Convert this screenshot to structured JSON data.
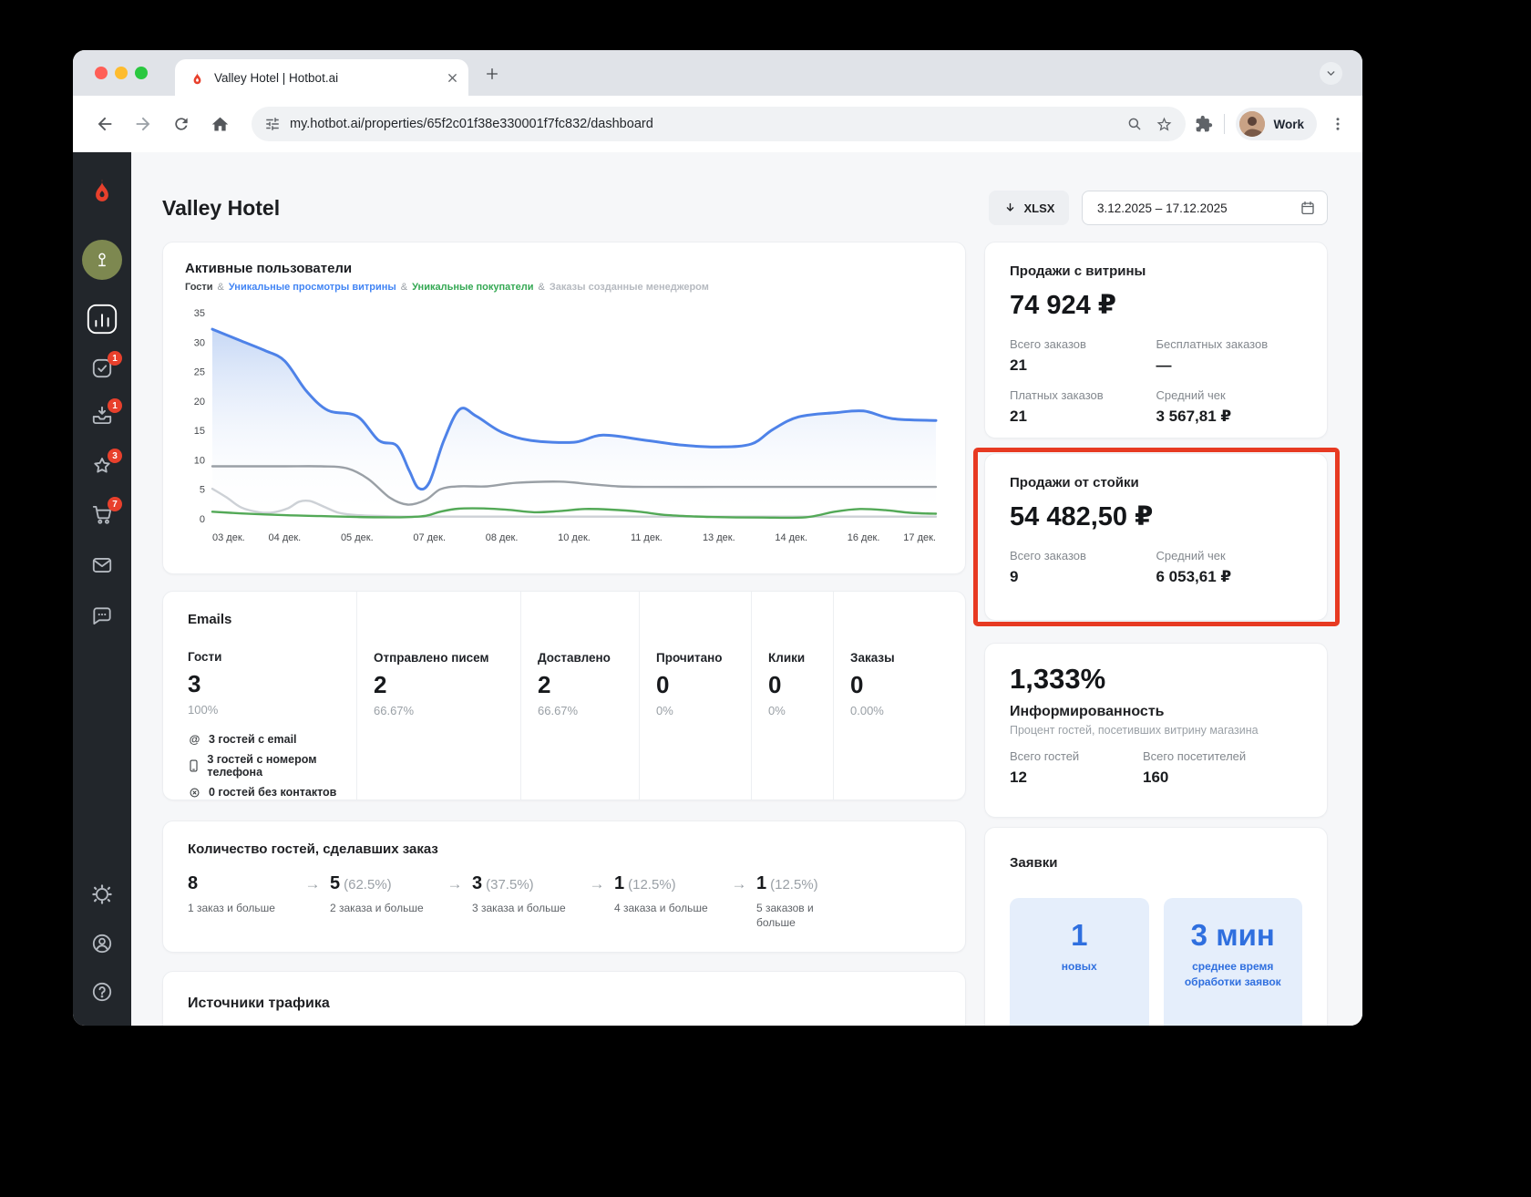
{
  "browser": {
    "tab_title": "Valley Hotel | Hotbot.ai",
    "url": "my.hotbot.ai/properties/65f2c01f38e330001f7fc832/dashboard",
    "profile_label": "Work"
  },
  "sidebar": {
    "badges": {
      "tasks": "1",
      "downloads": "1",
      "reviews": "3",
      "cart": "7"
    }
  },
  "header": {
    "title": "Valley Hotel",
    "export_label": "XLSX",
    "date_range": "3.12.2025 – 17.12.2025"
  },
  "chart_data": {
    "type": "line",
    "title": "Активные пользователи",
    "legend_sep": "&",
    "legend": [
      {
        "label": "Гости",
        "color": "#3c4043"
      },
      {
        "label": "Уникальные просмотры витрины",
        "color": "#4285f4"
      },
      {
        "label": "Уникальные покупатели",
        "color": "#34a853"
      },
      {
        "label": "Заказы созданные менеджером",
        "color": "#b6bac0"
      }
    ],
    "x_ticks": [
      "03 дек.",
      "04 дек.",
      "05 дек.",
      "07 дек.",
      "08 дек.",
      "10 дек.",
      "11 дек.",
      "13 дек.",
      "14 дек.",
      "16 дек.",
      "17 дек."
    ],
    "y_ticks": [
      0,
      5,
      10,
      15,
      20,
      25,
      30,
      35
    ],
    "ylim": [
      0,
      35
    ],
    "grid": false,
    "legend_position": "top",
    "series": [
      {
        "name": "Заказы созданные менеджером",
        "color": "#cdd1d6",
        "width": 2.4,
        "points": [
          [
            0,
            5.1
          ],
          [
            0.2,
            3.6
          ],
          [
            0.4,
            1.9
          ],
          [
            0.65,
            1.1
          ],
          [
            0.85,
            1.1
          ],
          [
            1.05,
            1.8
          ],
          [
            1.2,
            2.9
          ],
          [
            1.35,
            3.0
          ],
          [
            1.55,
            2.0
          ],
          [
            1.75,
            1.0
          ],
          [
            2,
            0.6
          ],
          [
            2.5,
            0.4
          ],
          [
            3,
            0.35
          ],
          [
            4,
            0.35
          ],
          [
            5,
            0.35
          ],
          [
            6,
            0.35
          ],
          [
            7,
            0.35
          ],
          [
            8,
            0.35
          ],
          [
            9,
            0.35
          ],
          [
            10,
            0.35
          ]
        ]
      },
      {
        "name": "Гости",
        "color": "#9aa0a6",
        "width": 2.4,
        "points": [
          [
            0,
            8.9
          ],
          [
            0.5,
            8.9
          ],
          [
            1,
            8.9
          ],
          [
            1.5,
            8.9
          ],
          [
            1.85,
            8.6
          ],
          [
            2.15,
            6.8
          ],
          [
            2.45,
            3.6
          ],
          [
            2.7,
            2.4
          ],
          [
            2.95,
            3.2
          ],
          [
            3.15,
            5.0
          ],
          [
            3.4,
            5.5
          ],
          [
            3.8,
            5.5
          ],
          [
            4.2,
            6.1
          ],
          [
            4.8,
            6.3
          ],
          [
            5.2,
            5.9
          ],
          [
            5.6,
            5.5
          ],
          [
            6,
            5.4
          ],
          [
            7,
            5.4
          ],
          [
            8,
            5.4
          ],
          [
            9,
            5.4
          ],
          [
            10,
            5.4
          ]
        ]
      },
      {
        "name": "Уникальные покупатели",
        "color": "#53a957",
        "width": 2.4,
        "points": [
          [
            0,
            1.2
          ],
          [
            0.4,
            0.9
          ],
          [
            1,
            0.6
          ],
          [
            1.5,
            0.45
          ],
          [
            2,
            0.3
          ],
          [
            2.6,
            0.25
          ],
          [
            2.95,
            0.5
          ],
          [
            3.15,
            1.2
          ],
          [
            3.4,
            1.7
          ],
          [
            3.75,
            1.75
          ],
          [
            4.1,
            1.5
          ],
          [
            4.45,
            1.1
          ],
          [
            4.8,
            1.3
          ],
          [
            5.15,
            1.65
          ],
          [
            5.5,
            1.55
          ],
          [
            5.9,
            1.2
          ],
          [
            6.3,
            0.6
          ],
          [
            6.9,
            0.3
          ],
          [
            7.6,
            0.2
          ],
          [
            8.2,
            0.25
          ],
          [
            8.6,
            1.2
          ],
          [
            8.95,
            1.65
          ],
          [
            9.3,
            1.45
          ],
          [
            9.65,
            1.0
          ],
          [
            10,
            0.85
          ]
        ]
      },
      {
        "name": "Уникальные просмотры витрины",
        "color": "#4e82e8",
        "width": 3,
        "fill": true,
        "points": [
          [
            0,
            32.2
          ],
          [
            0.4,
            30.2
          ],
          [
            0.72,
            28.6
          ],
          [
            1,
            26.8
          ],
          [
            1.3,
            21.7
          ],
          [
            1.6,
            18.4
          ],
          [
            2,
            17.4
          ],
          [
            2.3,
            13.3
          ],
          [
            2.55,
            12.4
          ],
          [
            2.72,
            8.2
          ],
          [
            2.85,
            5.2
          ],
          [
            3,
            6.2
          ],
          [
            3.2,
            13.3
          ],
          [
            3.42,
            18.6
          ],
          [
            3.65,
            17.4
          ],
          [
            4,
            14.7
          ],
          [
            4.4,
            13.3
          ],
          [
            5,
            13.0
          ],
          [
            5.4,
            14.2
          ],
          [
            6,
            13.3
          ],
          [
            6.5,
            12.5
          ],
          [
            7,
            12.2
          ],
          [
            7.45,
            12.7
          ],
          [
            7.75,
            15.2
          ],
          [
            8.1,
            17.3
          ],
          [
            8.6,
            18.0
          ],
          [
            9,
            18.3
          ],
          [
            9.4,
            17.0
          ],
          [
            10,
            16.7
          ]
        ]
      }
    ]
  },
  "emails": {
    "title": "Emails",
    "columns": [
      {
        "label": "Гости",
        "value": "3",
        "percent": "100%"
      },
      {
        "label": "Отправлено писем",
        "value": "2",
        "percent": "66.67%"
      },
      {
        "label": "Доставлено",
        "value": "2",
        "percent": "66.67%"
      },
      {
        "label": "Прочитано",
        "value": "0",
        "percent": "0%"
      },
      {
        "label": "Клики",
        "value": "0",
        "percent": "0%"
      },
      {
        "label": "Заказы",
        "value": "0",
        "percent": "0.00%"
      }
    ],
    "contacts": [
      {
        "text": "3 гостей с email"
      },
      {
        "text": "3 гостей с номером телефона"
      },
      {
        "text": "0 гостей без контактов"
      }
    ]
  },
  "guest_orders": {
    "title": "Количество гостей, сделавших заказ",
    "arrow": "→",
    "steps": [
      {
        "value": "8",
        "percent": "",
        "label": "1 заказ и больше"
      },
      {
        "value": "5",
        "percent": "(62.5%)",
        "label": "2 заказа и больше"
      },
      {
        "value": "3",
        "percent": "(37.5%)",
        "label": "3 заказа и больше"
      },
      {
        "value": "1",
        "percent": "(12.5%)",
        "label": "4 заказа и больше"
      },
      {
        "value": "1",
        "percent": "(12.5%)",
        "label": "5 заказов и больше"
      }
    ]
  },
  "traffic": {
    "title": "Источники трафика"
  },
  "storefront_sales": {
    "title": "Продажи с витрины",
    "total": "74 924 ₽",
    "stats": [
      {
        "label": "Всего заказов",
        "value": "21"
      },
      {
        "label": "Бесплатных заказов",
        "value": "—"
      },
      {
        "label": "Платных заказов",
        "value": "21"
      },
      {
        "label": "Средний чек",
        "value": "3 567,81 ₽"
      }
    ]
  },
  "desk_sales": {
    "title": "Продажи от стойки",
    "total": "54 482,50 ₽",
    "stats": [
      {
        "label": "Всего заказов",
        "value": "9"
      },
      {
        "label": "Средний чек",
        "value": "6 053,61 ₽"
      }
    ]
  },
  "awareness": {
    "value": "1,333%",
    "title": "Информированность",
    "subtitle": "Процент гостей, посетивших витрину магазина",
    "stats": [
      {
        "label": "Всего гостей",
        "value": "12"
      },
      {
        "label": "Всего посетителей",
        "value": "160"
      }
    ]
  },
  "requests": {
    "title": "Заявки",
    "tiles": [
      {
        "value": "1",
        "label": "новых"
      },
      {
        "value": "3 мин",
        "label": "среднее время обработки заявок"
      }
    ]
  }
}
